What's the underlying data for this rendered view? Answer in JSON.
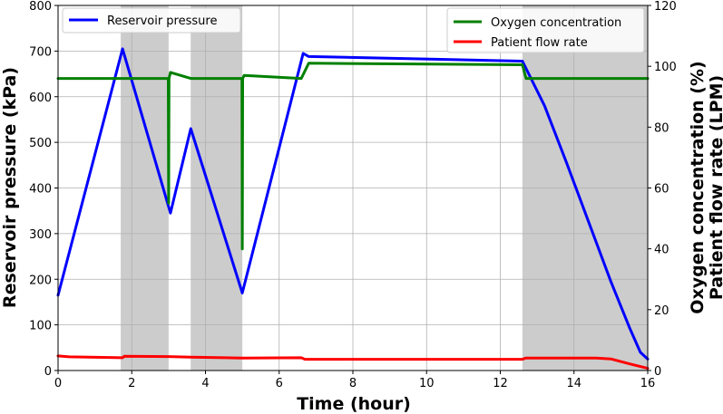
{
  "chart_data": {
    "type": "line",
    "xlabel": "Time (hour)",
    "ylabel_left": "Reservoir pressure (kPa)",
    "ylabel_right_line1": "Oxygen concentration (%)",
    "ylabel_right_line2": "Patient flow rate (LPM)",
    "xlim": [
      0,
      16
    ],
    "ylim_left": [
      0,
      800
    ],
    "ylim_right": [
      0,
      120
    ],
    "x_ticks": [
      0,
      2,
      4,
      6,
      8,
      10,
      12,
      14,
      16
    ],
    "y_left_ticks": [
      0,
      100,
      200,
      300,
      400,
      500,
      600,
      700,
      800
    ],
    "y_right_ticks": [
      0,
      20,
      40,
      60,
      80,
      100,
      120
    ],
    "grid": true,
    "shaded_intervals": [
      [
        1.7,
        3.0
      ],
      [
        3.6,
        5.0
      ],
      [
        12.6,
        16.0
      ]
    ],
    "legend_left": {
      "position": "top-left",
      "entries": [
        "Reservoir pressure"
      ]
    },
    "legend_right": {
      "position": "top-right",
      "entries": [
        "Oxygen concentration",
        "Patient flow rate"
      ]
    },
    "series": [
      {
        "name": "Reservoir pressure",
        "axis": "left",
        "color": "#0000ff",
        "x": [
          0,
          1.75,
          3.05,
          3.6,
          5.0,
          6.65,
          6.8,
          12.6,
          13.2,
          13.8,
          14.4,
          15.0,
          15.5,
          15.8,
          16.0
        ],
        "y": [
          165,
          705,
          345,
          530,
          170,
          695,
          688,
          678,
          580,
          455,
          325,
          195,
          95,
          40,
          25
        ]
      },
      {
        "name": "Oxygen concentration",
        "axis": "right",
        "color": "#008000",
        "x": [
          0,
          1.75,
          2.99,
          3.0,
          3.01,
          3.05,
          3.6,
          4.99,
          5.0,
          5.01,
          5.05,
          6.6,
          6.8,
          12.6,
          12.7,
          16.0
        ],
        "y": [
          96,
          96,
          96,
          55,
          96,
          98,
          96,
          96,
          40,
          96,
          97,
          96,
          101,
          100.5,
          96,
          96
        ]
      },
      {
        "name": "Patient flow rate",
        "axis": "right",
        "color": "#ff0000",
        "x": [
          0,
          0.3,
          1.75,
          1.8,
          3.0,
          3.6,
          5.0,
          6.6,
          6.7,
          12.6,
          12.7,
          14.6,
          15.0,
          15.5,
          16.0
        ],
        "y": [
          4.8,
          4.5,
          4.2,
          4.7,
          4.6,
          4.4,
          4.1,
          4.2,
          3.7,
          3.7,
          4.1,
          4.1,
          3.8,
          2.2,
          0.7
        ]
      }
    ]
  }
}
